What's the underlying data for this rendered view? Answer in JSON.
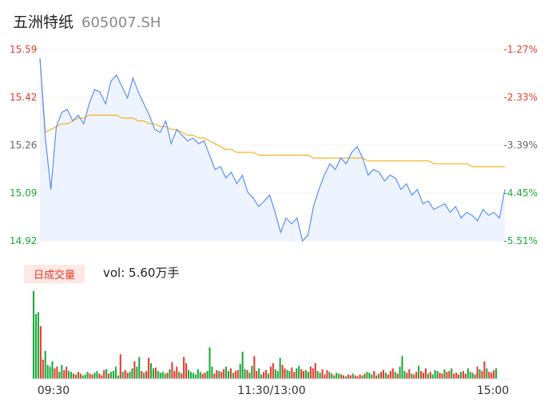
{
  "header": {
    "name": "五洲特纸",
    "code": "605007.SH"
  },
  "volume_panel": {
    "badge": "日成交量",
    "label": "vol: 5.60万手"
  },
  "colors": {
    "price": "#5b8ff9",
    "avg": "#f4b324",
    "up": "#e53b2c",
    "down": "#1aaa3c",
    "fill": "#eef4ff"
  },
  "chart_data": [
    {
      "type": "line",
      "title": "五洲特纸 605007.SH",
      "ylim": [
        14.92,
        15.59
      ],
      "y_ticks_left": [
        "15.59",
        "15.42",
        "15.26",
        "15.09",
        "14.92"
      ],
      "y_ticks_right": [
        "-1.27%",
        "-2.33%",
        "-3.39%",
        "-4.45%",
        "-5.51%"
      ],
      "x_ticks": [
        "09:30",
        "11:30/13:00",
        "15:00"
      ],
      "series": [
        {
          "role": "price",
          "values": [
            15.56,
            15.28,
            15.1,
            15.32,
            15.37,
            15.38,
            15.34,
            15.36,
            15.33,
            15.4,
            15.45,
            15.44,
            15.4,
            15.48,
            15.5,
            15.46,
            15.42,
            15.49,
            15.44,
            15.4,
            15.36,
            15.31,
            15.3,
            15.34,
            15.26,
            15.31,
            15.29,
            15.27,
            15.28,
            15.26,
            15.27,
            15.22,
            15.17,
            15.18,
            15.14,
            15.16,
            15.12,
            15.15,
            15.09,
            15.07,
            15.04,
            15.06,
            15.08,
            15.02,
            14.95,
            15.0,
            14.98,
            15.0,
            14.92,
            14.94,
            15.04,
            15.1,
            15.15,
            15.19,
            15.17,
            15.21,
            15.19,
            15.23,
            15.25,
            15.21,
            15.15,
            15.17,
            15.16,
            15.13,
            15.15,
            15.14,
            15.1,
            15.12,
            15.08,
            15.1,
            15.05,
            15.06,
            15.03,
            15.04,
            15.05,
            15.02,
            15.04,
            15.0,
            15.02,
            15.01,
            14.99,
            15.03,
            15.01,
            15.02,
            15.0,
            15.1
          ]
        },
        {
          "role": "avg",
          "values": [
            15.56,
            15.3,
            15.31,
            15.32,
            15.33,
            15.33,
            15.34,
            15.35,
            15.35,
            15.36,
            15.36,
            15.36,
            15.36,
            15.36,
            15.36,
            15.35,
            15.35,
            15.35,
            15.34,
            15.34,
            15.33,
            15.33,
            15.32,
            15.32,
            15.31,
            15.31,
            15.3,
            15.29,
            15.29,
            15.28,
            15.28,
            15.27,
            15.26,
            15.25,
            15.24,
            15.24,
            15.23,
            15.23,
            15.23,
            15.23,
            15.22,
            15.22,
            15.22,
            15.22,
            15.22,
            15.22,
            15.22,
            15.22,
            15.22,
            15.22,
            15.21,
            15.21,
            15.21,
            15.21,
            15.21,
            15.21,
            15.21,
            15.21,
            15.21,
            15.21,
            15.2,
            15.2,
            15.2,
            15.2,
            15.2,
            15.2,
            15.2,
            15.2,
            15.2,
            15.2,
            15.2,
            15.2,
            15.19,
            15.19,
            15.19,
            15.19,
            15.19,
            15.19,
            15.19,
            15.18,
            15.18,
            15.18,
            15.18,
            15.18,
            15.18,
            15.18
          ]
        }
      ]
    },
    {
      "type": "bar",
      "title": "日成交量",
      "directions": "ddduudddduudduudduduuddduudduuududddduduuddudduduuddudddduduuuduuudddddduuddduuduudduduudddudduudduuduuddduudduudduudduuudduuududdduuduuduuududdduuduuduuududdduuduuduuududdduuduuduuuduuddduuduuduuududdduuduuduuuduu",
      "values": [
        100,
        74,
        76,
        60,
        22,
        32,
        16,
        14,
        20,
        12,
        14,
        8,
        16,
        10,
        14,
        9,
        8,
        6,
        5,
        8,
        6,
        4,
        5,
        8,
        6,
        5,
        7,
        9,
        6,
        4,
        10,
        11,
        6,
        8,
        9,
        14,
        4,
        28,
        8,
        10,
        7,
        8,
        12,
        20,
        14,
        25,
        9,
        7,
        9,
        24,
        18,
        12,
        13,
        9,
        7,
        8,
        6,
        7,
        11,
        19,
        9,
        14,
        8,
        6,
        25,
        18,
        10,
        8,
        7,
        5,
        11,
        8,
        6,
        7,
        9,
        36,
        14,
        6,
        10,
        9,
        8,
        11,
        14,
        9,
        12,
        7,
        9,
        10,
        17,
        31,
        11,
        10,
        7,
        15,
        26,
        9,
        12,
        5,
        8,
        10,
        6,
        14,
        18,
        11,
        9,
        24,
        16,
        12,
        10,
        9,
        13,
        8,
        12,
        15,
        11,
        9,
        10,
        8,
        14,
        12,
        18,
        9,
        7,
        11,
        5,
        10,
        8,
        6,
        4,
        7,
        6,
        5,
        4,
        3,
        5,
        4,
        6,
        4,
        3,
        5,
        4,
        6,
        8,
        7,
        5,
        9,
        4,
        6,
        8,
        10,
        7,
        5,
        9,
        12,
        8,
        6,
        14,
        26,
        9,
        7,
        11,
        6,
        5,
        8,
        15,
        9,
        7,
        12,
        6,
        8,
        5,
        10,
        9,
        7,
        6,
        11,
        8,
        9,
        12,
        6,
        7,
        5,
        8,
        9,
        6,
        12,
        8,
        7,
        5,
        14,
        11,
        9,
        20,
        12,
        8,
        7,
        10,
        12
      ]
    }
  ]
}
